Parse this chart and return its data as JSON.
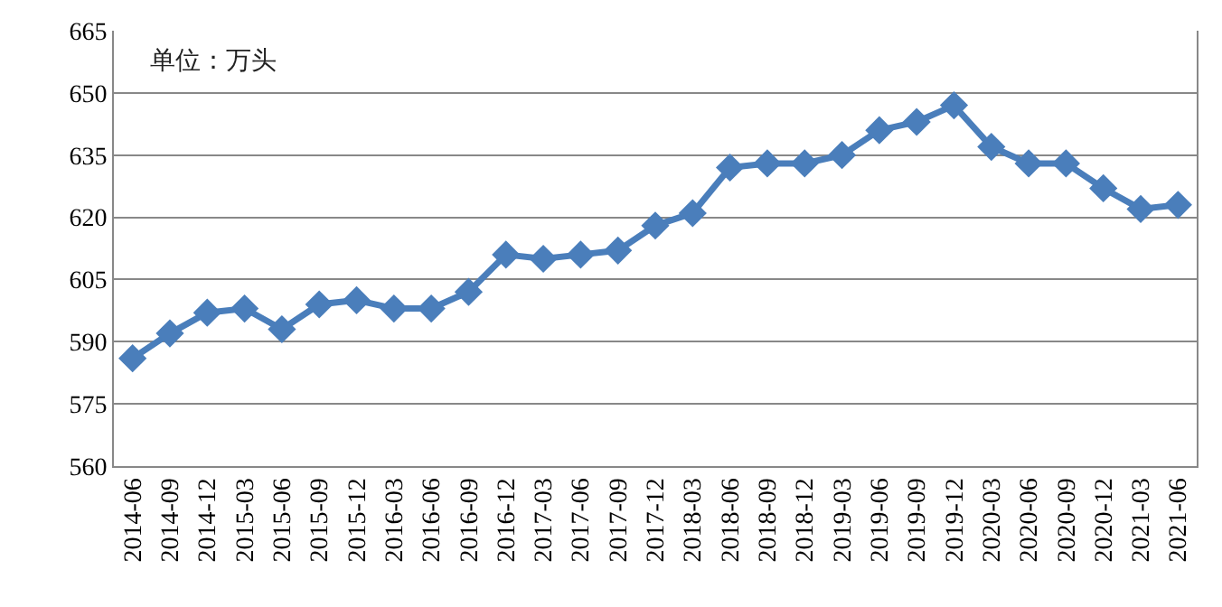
{
  "chart_data": {
    "type": "line",
    "annotations": [
      "单位：万头"
    ],
    "categories": [
      "2014-06",
      "2014-09",
      "2014-12",
      "2015-03",
      "2015-06",
      "2015-09",
      "2015-12",
      "2016-03",
      "2016-06",
      "2016-09",
      "2016-12",
      "2017-03",
      "2017-06",
      "2017-09",
      "2017-12",
      "2018-03",
      "2018-06",
      "2018-09",
      "2018-12",
      "2019-03",
      "2019-06",
      "2019-09",
      "2019-12",
      "2020-03",
      "2020-06",
      "2020-09",
      "2020-12",
      "2021-03",
      "2021-06"
    ],
    "series": [
      {
        "color": "#4a7ebb",
        "values": [
          586,
          592,
          597,
          598,
          593,
          599,
          600,
          598,
          598,
          602,
          611,
          610,
          611,
          612,
          618,
          621,
          632,
          633,
          633,
          635,
          641,
          643,
          647,
          637,
          633,
          633,
          627,
          622,
          623
        ]
      }
    ],
    "ylim": [
      560,
      665
    ],
    "yticks": [
      560,
      575,
      590,
      605,
      620,
      635,
      650,
      665
    ],
    "grid": "y",
    "marker": "diamond",
    "line_style": "solid"
  }
}
